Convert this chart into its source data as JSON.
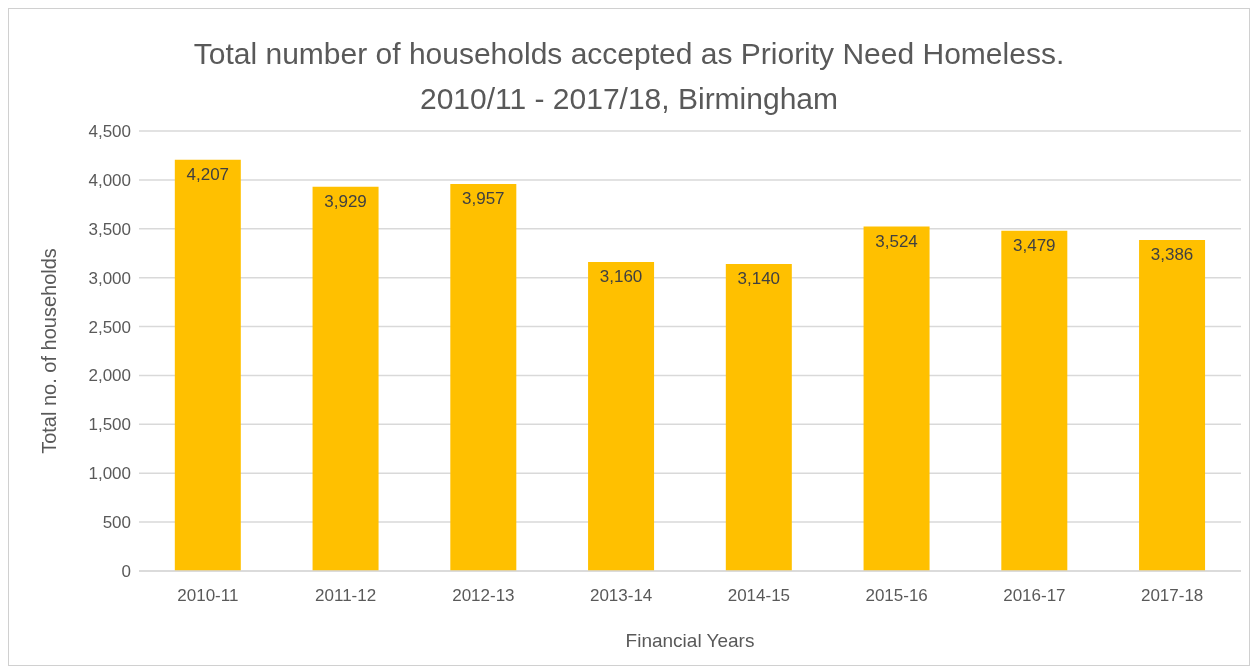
{
  "chart_data": {
    "type": "bar",
    "title": "Total number of households accepted as Priority Need Homeless. 2010/11 - 2017/18, Birmingham",
    "xlabel": "Financial Years",
    "ylabel": "Total no. of households",
    "categories": [
      "2010-11",
      "2011-12",
      "2012-13",
      "2013-14",
      "2014-15",
      "2015-16",
      "2016-17",
      "2017-18"
    ],
    "values": [
      4207,
      3929,
      3957,
      3160,
      3140,
      3524,
      3479,
      3386
    ],
    "value_labels": [
      "4,207",
      "3,929",
      "3,957",
      "3,160",
      "3,140",
      "3,524",
      "3,479",
      "3,386"
    ],
    "color": "#ffc000",
    "ylim": [
      0,
      4500
    ],
    "yticks": [
      0,
      500,
      {
        "value": 1000,
        "label": "1,000"
      },
      {
        "value": 1500,
        "label": "1,500"
      },
      {
        "value": 2000,
        "label": "2,000"
      },
      {
        "value": 2500,
        "label": "2,500"
      },
      {
        "value": 3000,
        "label": "3,000"
      },
      {
        "value": 3500,
        "label": "3,500"
      },
      {
        "value": 4000,
        "label": "4,000"
      },
      {
        "value": 4500,
        "label": "4,500"
      }
    ],
    "grid": "y",
    "legend": false
  }
}
